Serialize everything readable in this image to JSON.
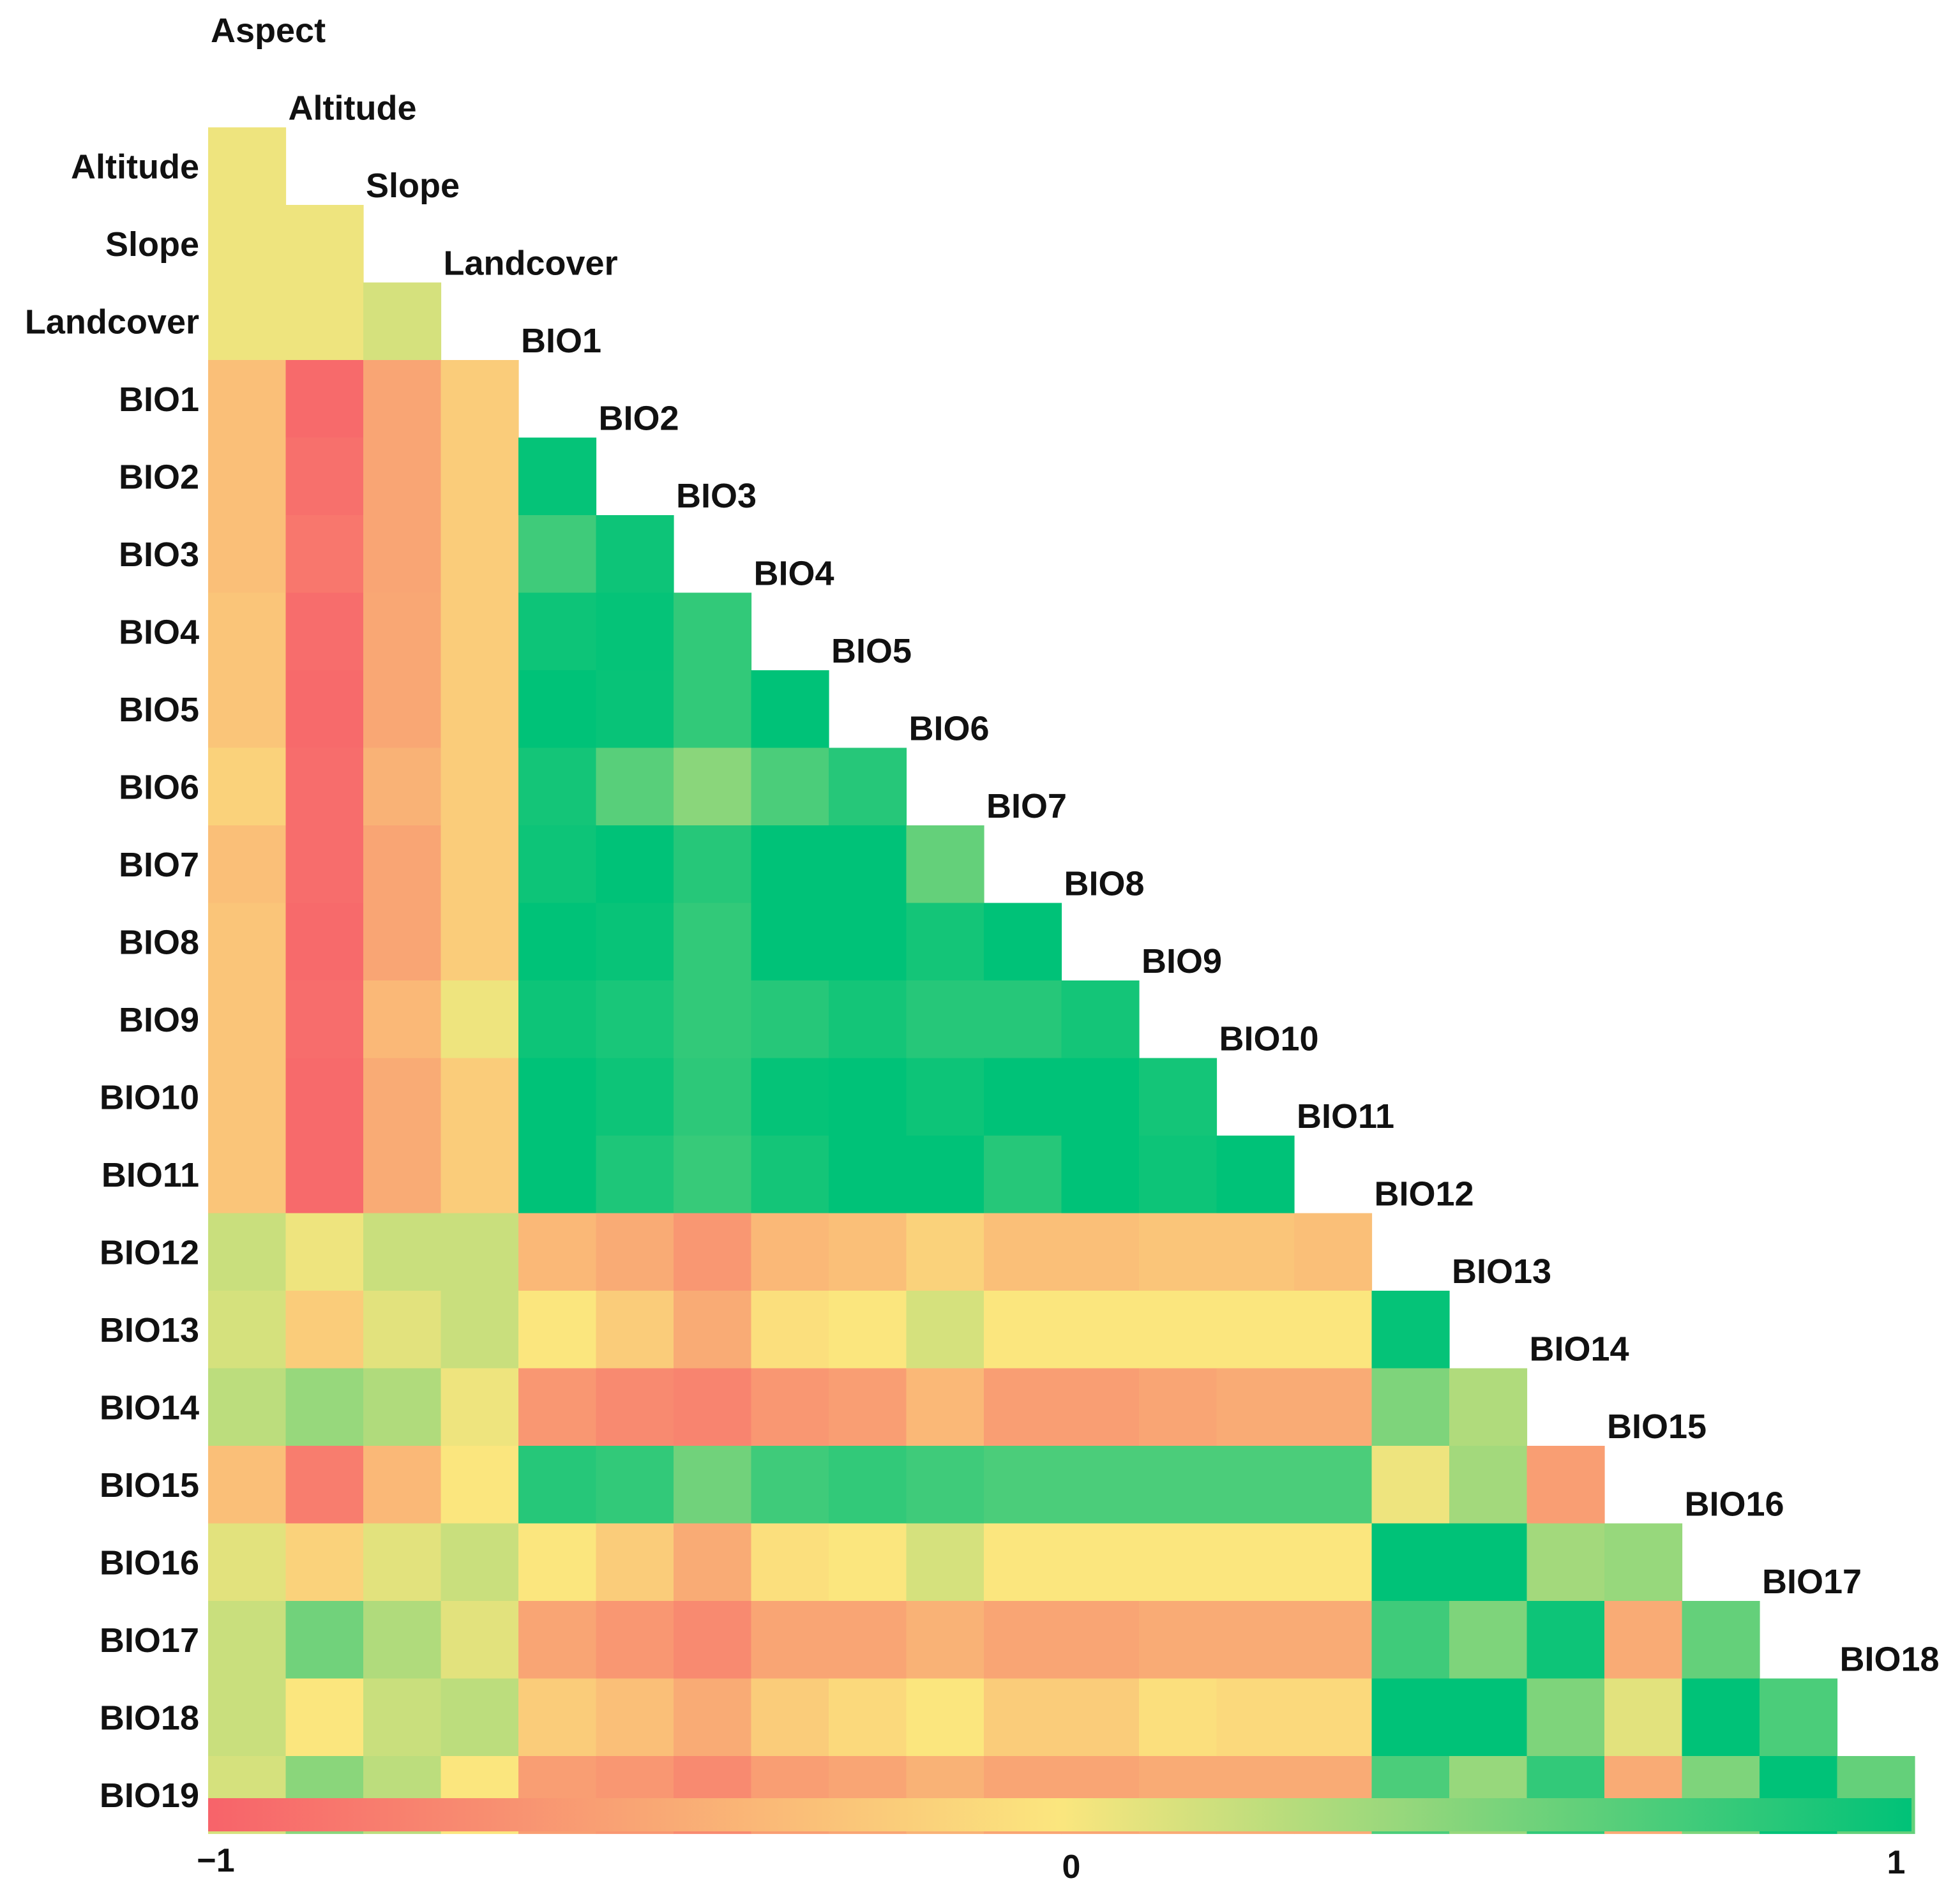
{
  "chart_data": {
    "type": "heatmap",
    "shape": "lower-triangular correlation matrix",
    "variables": [
      "Aspect",
      "Altitude",
      "Slope",
      "Landcover",
      "BIO1",
      "BIO2",
      "BIO3",
      "BIO4",
      "BIO5",
      "BIO6",
      "BIO7",
      "BIO8",
      "BIO9",
      "BIO10",
      "BIO11",
      "BIO12",
      "BIO13",
      "BIO14",
      "BIO15",
      "BIO16",
      "BIO17",
      "BIO18",
      "BIO19"
    ],
    "matrix": [
      [],
      [
        0.05
      ],
      [
        0.05,
        0.05
      ],
      [
        0.05,
        0.05,
        0.15
      ],
      [
        -0.3,
        -0.95,
        -0.5,
        -0.2
      ],
      [
        -0.3,
        -0.9,
        -0.5,
        -0.2,
        0.98
      ],
      [
        -0.3,
        -0.85,
        -0.5,
        -0.2,
        0.75,
        0.95
      ],
      [
        -0.25,
        -0.92,
        -0.48,
        -0.2,
        0.95,
        0.98,
        0.8
      ],
      [
        -0.25,
        -0.95,
        -0.48,
        -0.2,
        1.0,
        0.97,
        0.8,
        1.0
      ],
      [
        -0.15,
        -0.92,
        -0.4,
        -0.2,
        0.92,
        0.65,
        0.45,
        0.7,
        0.85
      ],
      [
        -0.3,
        -0.92,
        -0.5,
        -0.2,
        0.95,
        1.0,
        0.85,
        1.0,
        1.0,
        0.6
      ],
      [
        -0.25,
        -0.95,
        -0.5,
        -0.2,
        1.0,
        0.97,
        0.8,
        1.0,
        1.0,
        0.92,
        1.0
      ],
      [
        -0.25,
        -0.92,
        -0.35,
        0.05,
        0.95,
        0.9,
        0.8,
        0.85,
        0.92,
        0.85,
        0.85,
        0.92
      ],
      [
        -0.25,
        -0.95,
        -0.45,
        -0.2,
        1.0,
        0.95,
        0.82,
        0.98,
        1.0,
        0.95,
        1.0,
        1.0,
        0.92
      ],
      [
        -0.25,
        -0.95,
        -0.45,
        -0.2,
        1.0,
        0.88,
        0.78,
        0.92,
        1.0,
        1.0,
        0.85,
        1.0,
        0.95,
        1.0
      ],
      [
        0.2,
        0.05,
        0.2,
        0.2,
        -0.35,
        -0.45,
        -0.6,
        -0.35,
        -0.3,
        -0.15,
        -0.3,
        -0.3,
        -0.25,
        -0.25,
        -0.3
      ],
      [
        0.15,
        -0.2,
        0.1,
        0.2,
        0.0,
        -0.2,
        -0.45,
        -0.05,
        0.0,
        0.15,
        0.0,
        0.0,
        0.0,
        0.0,
        0.0,
        0.98
      ],
      [
        0.25,
        0.4,
        0.3,
        0.05,
        -0.6,
        -0.7,
        -0.75,
        -0.6,
        -0.55,
        -0.35,
        -0.55,
        -0.55,
        -0.5,
        -0.45,
        -0.45,
        0.5,
        0.3
      ],
      [
        -0.3,
        -0.8,
        -0.35,
        0.0,
        0.85,
        0.8,
        0.55,
        0.75,
        0.8,
        0.75,
        0.7,
        0.7,
        0.7,
        0.7,
        0.7,
        0.05,
        0.35,
        -0.55
      ],
      [
        0.1,
        -0.15,
        0.1,
        0.2,
        0.0,
        -0.2,
        -0.45,
        -0.05,
        0.0,
        0.15,
        0.0,
        0.0,
        0.0,
        0.0,
        0.0,
        1.0,
        1.0,
        0.35,
        0.4
      ],
      [
        0.2,
        0.55,
        0.3,
        0.1,
        -0.5,
        -0.6,
        -0.7,
        -0.5,
        -0.5,
        -0.4,
        -0.5,
        -0.5,
        -0.45,
        -0.45,
        -0.45,
        0.75,
        0.5,
        0.95,
        -0.45,
        0.6
      ],
      [
        0.2,
        0.0,
        0.2,
        0.25,
        -0.2,
        -0.3,
        -0.45,
        -0.2,
        -0.1,
        0.0,
        -0.2,
        -0.2,
        -0.05,
        -0.1,
        -0.1,
        1.0,
        1.0,
        0.5,
        0.1,
        1.0,
        0.7
      ],
      [
        0.15,
        0.45,
        0.25,
        0.0,
        -0.55,
        -0.6,
        -0.7,
        -0.55,
        -0.5,
        -0.4,
        -0.5,
        -0.5,
        -0.45,
        -0.45,
        -0.45,
        0.7,
        0.4,
        0.8,
        -0.45,
        0.5,
        1.0,
        0.6
      ]
    ],
    "colorbar": {
      "min": -1,
      "max": 1,
      "ticks": [
        "−1",
        "0",
        "1"
      ],
      "colors": {
        "neg": "#f7636a",
        "zero": "#fbe67e",
        "pos": "#00c278"
      }
    }
  }
}
